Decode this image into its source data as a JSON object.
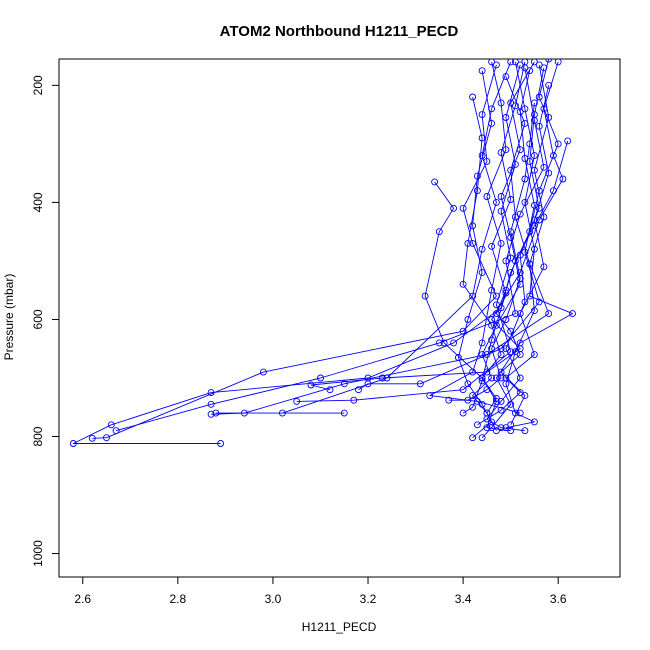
{
  "chart_data": {
    "type": "line",
    "title": "ATOM2 Northbound H1211_PECD",
    "xlabel": "H1211_PECD",
    "ylabel": "Pressure (mbar)",
    "xlim": [
      2.55,
      3.73
    ],
    "ylim": [
      1040,
      155
    ],
    "y_inverted": true,
    "xticks": [
      2.6,
      2.8,
      3.0,
      3.2,
      3.4,
      3.6
    ],
    "xtick_labels": [
      "2.6",
      "2.8",
      "3.0",
      "3.2",
      "3.4",
      "3.6"
    ],
    "yticks": [
      200,
      400,
      600,
      800,
      1000
    ],
    "ytick_labels": [
      "200",
      "400",
      "600",
      "800",
      "1000"
    ],
    "grid": false,
    "color": "#0000ff",
    "marker": "open-circle",
    "series": [
      {
        "points": [
          [
            3.55,
            160
          ],
          [
            3.5,
            230
          ],
          [
            3.52,
            310
          ],
          [
            3.48,
            390
          ],
          [
            3.5,
            460
          ],
          [
            3.52,
            540
          ],
          [
            3.47,
            610
          ],
          [
            3.44,
            660
          ],
          [
            3.46,
            700
          ],
          [
            3.42,
            730
          ],
          [
            3.45,
            760
          ],
          [
            3.47,
            790
          ]
        ]
      },
      {
        "points": [
          [
            3.58,
            155
          ],
          [
            3.56,
            220
          ],
          [
            3.6,
            300
          ],
          [
            3.56,
            380
          ],
          [
            3.54,
            450
          ],
          [
            3.5,
            520
          ],
          [
            3.48,
            580
          ],
          [
            3.38,
            640
          ],
          [
            3.2,
            700
          ],
          [
            2.87,
            725
          ],
          [
            2.66,
            780
          ],
          [
            2.58,
            812
          ],
          [
            2.89,
            812
          ]
        ]
      },
      {
        "points": [
          [
            3.47,
            165
          ],
          [
            3.44,
            250
          ],
          [
            3.45,
            330
          ],
          [
            3.4,
            410
          ],
          [
            3.42,
            470
          ],
          [
            3.47,
            560
          ],
          [
            3.4,
            620
          ],
          [
            2.98,
            690
          ],
          [
            2.65,
            802
          ],
          [
            2.62,
            803
          ]
        ]
      },
      {
        "points": [
          [
            3.53,
            170
          ],
          [
            3.55,
            260
          ],
          [
            3.57,
            340
          ],
          [
            3.52,
            420
          ],
          [
            3.49,
            500
          ],
          [
            3.51,
            590
          ],
          [
            3.35,
            640
          ],
          [
            3.1,
            700
          ],
          [
            2.87,
            745
          ],
          [
            2.67,
            790
          ]
        ]
      },
      {
        "points": [
          [
            3.5,
            160
          ],
          [
            3.46,
            240
          ],
          [
            3.44,
            320
          ],
          [
            3.47,
            400
          ],
          [
            3.44,
            480
          ],
          [
            3.42,
            560
          ],
          [
            3.24,
            700
          ],
          [
            3.02,
            760
          ],
          [
            2.88,
            760
          ],
          [
            3.15,
            760
          ]
        ]
      },
      {
        "points": [
          [
            3.49,
            185
          ],
          [
            3.53,
            265
          ],
          [
            3.5,
            345
          ],
          [
            3.51,
            425
          ],
          [
            3.54,
            505
          ],
          [
            3.58,
            590
          ],
          [
            3.45,
            660
          ],
          [
            3.15,
            710
          ],
          [
            2.94,
            760
          ],
          [
            2.87,
            762
          ]
        ]
      },
      {
        "points": [
          [
            3.6,
            160
          ],
          [
            3.57,
            240
          ],
          [
            3.59,
            320
          ],
          [
            3.61,
            360
          ],
          [
            3.56,
            430
          ],
          [
            3.52,
            520
          ],
          [
            3.46,
            600
          ],
          [
            3.52,
            650
          ],
          [
            3.45,
            690
          ],
          [
            3.23,
            700
          ],
          [
            3.08,
            712
          ],
          [
            3.12,
            720
          ]
        ]
      },
      {
        "points": [
          [
            3.52,
            165
          ],
          [
            3.49,
            255
          ],
          [
            3.51,
            335
          ],
          [
            3.48,
            415
          ],
          [
            3.5,
            495
          ],
          [
            3.47,
            575
          ],
          [
            3.5,
            655
          ],
          [
            3.4,
            720
          ],
          [
            3.17,
            738
          ],
          [
            3.05,
            740
          ]
        ]
      },
      {
        "points": [
          [
            3.54,
            175
          ],
          [
            3.52,
            245
          ],
          [
            3.53,
            325
          ],
          [
            3.55,
            405
          ],
          [
            3.53,
            485
          ],
          [
            3.56,
            570
          ],
          [
            3.48,
            650
          ],
          [
            3.31,
            710
          ],
          [
            3.2,
            710
          ],
          [
            3.18,
            720
          ]
        ]
      },
      {
        "points": [
          [
            3.46,
            160
          ],
          [
            3.48,
            230
          ],
          [
            3.49,
            310
          ],
          [
            3.45,
            390
          ],
          [
            3.48,
            470
          ],
          [
            3.46,
            550
          ],
          [
            3.44,
            640
          ],
          [
            3.42,
            690
          ],
          [
            3.33,
            730
          ],
          [
            3.43,
            740
          ],
          [
            3.52,
            760
          ]
        ]
      },
      {
        "points": [
          [
            3.57,
            170
          ],
          [
            3.55,
            250
          ],
          [
            3.54,
            330
          ],
          [
            3.56,
            410
          ],
          [
            3.52,
            490
          ],
          [
            3.53,
            570
          ],
          [
            3.49,
            650
          ],
          [
            3.52,
            700
          ],
          [
            3.48,
            740
          ],
          [
            3.45,
            770
          ],
          [
            3.48,
            785
          ],
          [
            3.53,
            790
          ]
        ]
      },
      {
        "points": [
          [
            3.51,
            160
          ],
          [
            3.53,
            240
          ],
          [
            3.55,
            320
          ],
          [
            3.53,
            400
          ],
          [
            3.55,
            480
          ],
          [
            3.54,
            560
          ],
          [
            3.63,
            590
          ],
          [
            3.52,
            640
          ],
          [
            3.47,
            700
          ],
          [
            3.5,
            745
          ],
          [
            3.46,
            785
          ],
          [
            3.44,
            802
          ]
        ]
      },
      {
        "points": [
          [
            3.44,
            175
          ],
          [
            3.46,
            265
          ],
          [
            3.43,
            355
          ],
          [
            3.42,
            440
          ],
          [
            3.44,
            520
          ],
          [
            3.41,
            600
          ],
          [
            3.39,
            665
          ],
          [
            3.41,
            710
          ],
          [
            3.44,
            745
          ],
          [
            3.46,
            775
          ],
          [
            3.42,
            802
          ]
        ]
      },
      {
        "points": [
          [
            3.56,
            165
          ],
          [
            3.58,
            255
          ],
          [
            3.55,
            345
          ],
          [
            3.57,
            425
          ],
          [
            3.54,
            505
          ],
          [
            3.55,
            585
          ],
          [
            3.51,
            655
          ],
          [
            3.49,
            710
          ],
          [
            3.51,
            760
          ],
          [
            3.55,
            775
          ],
          [
            3.49,
            785
          ]
        ]
      },
      {
        "points": [
          [
            3.53,
            160
          ],
          [
            3.51,
            235
          ],
          [
            3.48,
            315
          ],
          [
            3.5,
            395
          ],
          [
            3.46,
            475
          ],
          [
            3.49,
            555
          ],
          [
            3.46,
            635
          ],
          [
            3.44,
            705
          ],
          [
            3.42,
            750
          ],
          [
            3.4,
            760
          ]
        ]
      },
      {
        "points": [
          [
            3.62,
            295
          ],
          [
            3.59,
            380
          ],
          [
            3.55,
            440
          ],
          [
            3.51,
            500
          ],
          [
            3.49,
            550
          ],
          [
            3.47,
            590
          ],
          [
            3.5,
            620
          ],
          [
            3.52,
            660
          ],
          [
            3.48,
            690
          ],
          [
            3.53,
            730
          ],
          [
            3.5,
            780
          ]
        ]
      },
      {
        "points": [
          [
            3.34,
            365
          ],
          [
            3.38,
            410
          ],
          [
            3.35,
            450
          ],
          [
            3.32,
            560
          ],
          [
            3.36,
            640
          ],
          [
            3.44,
            700
          ],
          [
            3.47,
            735
          ],
          [
            3.45,
            760
          ]
        ]
      },
      {
        "points": [
          [
            3.55,
            230
          ],
          [
            3.54,
            300
          ],
          [
            3.53,
            360
          ],
          [
            3.5,
            450
          ],
          [
            3.52,
            530
          ],
          [
            3.49,
            600
          ],
          [
            3.46,
            650
          ],
          [
            3.48,
            700
          ],
          [
            3.45,
            720
          ],
          [
            3.41,
            738
          ],
          [
            3.37,
            738
          ]
        ]
      },
      {
        "points": [
          [
            3.42,
            220
          ],
          [
            3.44,
            290
          ],
          [
            3.43,
            380
          ],
          [
            3.41,
            470
          ],
          [
            3.4,
            540
          ],
          [
            3.46,
            610
          ],
          [
            3.48,
            660
          ],
          [
            3.44,
            700
          ],
          [
            3.47,
            740
          ],
          [
            3.45,
            785
          ],
          [
            3.5,
            790
          ]
        ]
      },
      {
        "points": [
          [
            3.58,
            200
          ],
          [
            3.56,
            270
          ],
          [
            3.58,
            350
          ],
          [
            3.55,
            430
          ],
          [
            3.57,
            510
          ],
          [
            3.52,
            590
          ],
          [
            3.55,
            660
          ],
          [
            3.49,
            700
          ],
          [
            3.52,
            725
          ],
          [
            3.48,
            755
          ],
          [
            3.43,
            780
          ]
        ]
      }
    ]
  }
}
